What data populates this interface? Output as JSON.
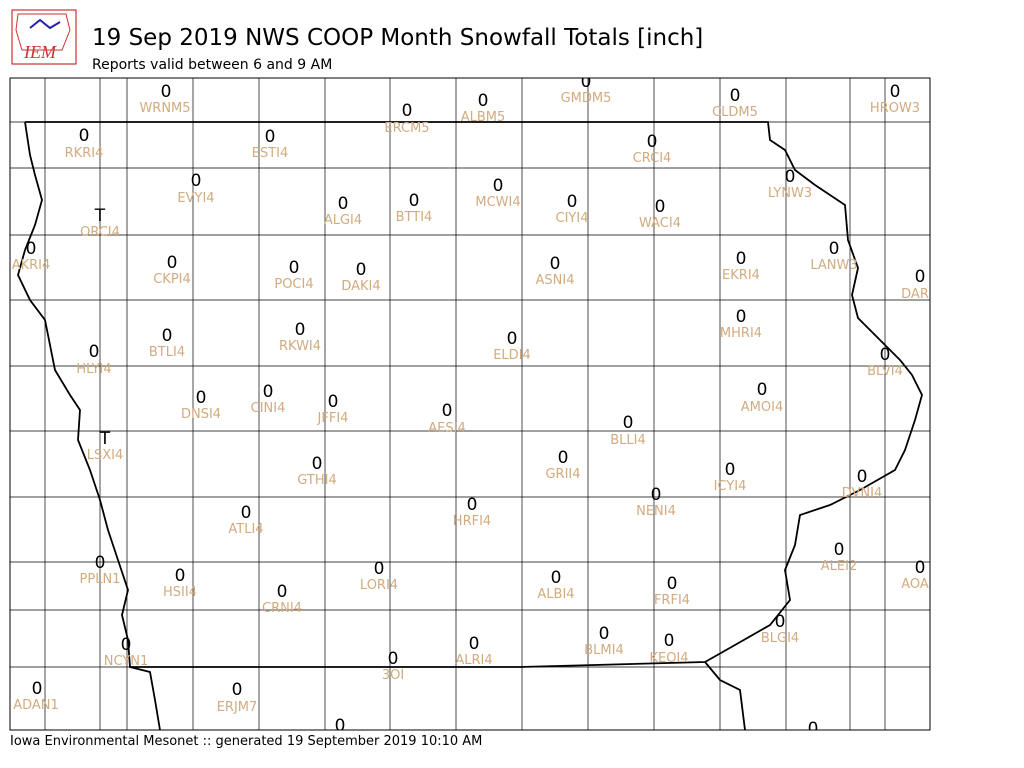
{
  "header": {
    "logo": "IEM",
    "title": "19 Sep 2019 NWS COOP Month Snowfall Totals [inch]",
    "subtitle": "Reports valid between 6 and 9 AM"
  },
  "footer": "Iowa Environmental Mesonet :: generated 19 September 2019 10:10 AM",
  "stations": [
    {
      "value": "0",
      "station": "WRNM5"
    },
    {
      "value": "0",
      "station": "ERCM5"
    },
    {
      "value": "0",
      "station": "ALBM5"
    },
    {
      "value": "0",
      "station": "GMDM5"
    },
    {
      "value": "0",
      "station": "CLDM5"
    },
    {
      "value": "0",
      "station": "HROW3"
    },
    {
      "value": "0",
      "station": "RKRI4"
    },
    {
      "value": "0",
      "station": "ESTI4"
    },
    {
      "value": "0",
      "station": "CRCI4"
    },
    {
      "value": "0",
      "station": "LYNW3"
    },
    {
      "value": "0",
      "station": "EVYI4"
    },
    {
      "value": "T",
      "station": "ORCI4"
    },
    {
      "value": "0",
      "station": "ALGI4"
    },
    {
      "value": "0",
      "station": "BTTI4"
    },
    {
      "value": "0",
      "station": "MCWI4"
    },
    {
      "value": "0",
      "station": "CIYI4"
    },
    {
      "value": "0",
      "station": "WACI4"
    },
    {
      "value": "0",
      "station": "AKRI4"
    },
    {
      "value": "0",
      "station": "CKPI4"
    },
    {
      "value": "0",
      "station": "POCI4"
    },
    {
      "value": "0",
      "station": "DAKI4"
    },
    {
      "value": "0",
      "station": "ASNI4"
    },
    {
      "value": "0",
      "station": "EKRI4"
    },
    {
      "value": "0",
      "station": "LANW3"
    },
    {
      "value": "0",
      "station": "DAR"
    },
    {
      "value": "0",
      "station": "BTLI4"
    },
    {
      "value": "0",
      "station": "RKWI4"
    },
    {
      "value": "0",
      "station": "ELDI4"
    },
    {
      "value": "0",
      "station": "MHRI4"
    },
    {
      "value": "0",
      "station": "HLYI4"
    },
    {
      "value": "0",
      "station": "BLVI4"
    },
    {
      "value": "0",
      "station": "DNSI4"
    },
    {
      "value": "0",
      "station": "CINI4"
    },
    {
      "value": "0",
      "station": "JFFI4"
    },
    {
      "value": "0",
      "station": "AESI4"
    },
    {
      "value": "0",
      "station": "AMOI4"
    },
    {
      "value": "0",
      "station": "BLLI4"
    },
    {
      "value": "T",
      "station": "LSXI4"
    },
    {
      "value": "0",
      "station": "GTHI4"
    },
    {
      "value": "0",
      "station": "GRII4"
    },
    {
      "value": "0",
      "station": "ICYI4"
    },
    {
      "value": "0",
      "station": "DVNI4"
    },
    {
      "value": "0",
      "station": "HRFI4"
    },
    {
      "value": "0",
      "station": "NENI4"
    },
    {
      "value": "0",
      "station": "ATLI4"
    },
    {
      "value": "0",
      "station": "ALEI2"
    },
    {
      "value": "0",
      "station": "PPLN1"
    },
    {
      "value": "0",
      "station": "HSII4"
    },
    {
      "value": "0",
      "station": "LORI4"
    },
    {
      "value": "0",
      "station": "ALBI4"
    },
    {
      "value": "0",
      "station": "FRFI4"
    },
    {
      "value": "0",
      "station": "AOA"
    },
    {
      "value": "0",
      "station": "CRNI4"
    },
    {
      "value": "0",
      "station": "BLGI4"
    },
    {
      "value": "0",
      "station": "NCYN1"
    },
    {
      "value": "0",
      "station": "BLMI4"
    },
    {
      "value": "0",
      "station": "KEOI4"
    },
    {
      "value": "0",
      "station": "ALRI4"
    },
    {
      "value": "0",
      "station": "3OI"
    },
    {
      "value": "0",
      "station": "ADAN1"
    },
    {
      "value": "0",
      "station": "ERJM7"
    },
    {
      "value": "0"
    },
    {
      "value": "0"
    }
  ]
}
